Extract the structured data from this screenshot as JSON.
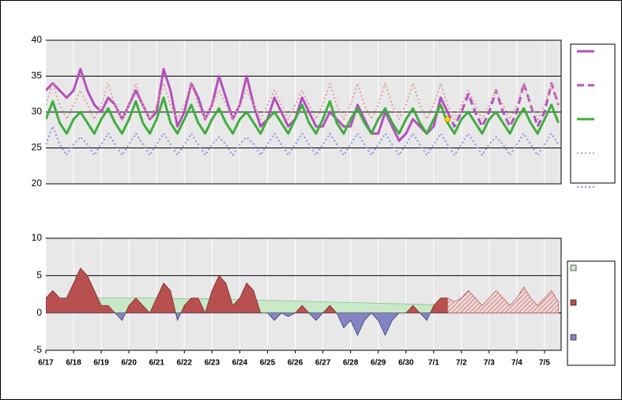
{
  "chart_data": [
    {
      "type": "line",
      "xlim": [
        0,
        18.6
      ],
      "ylim": [
        20,
        40
      ],
      "yticks": [
        20,
        25,
        30,
        35,
        40
      ],
      "grid": true,
      "series": [
        {
          "color": "#b54fbd",
          "style": "solid",
          "width": 3,
          "x": [
            0,
            0.25,
            0.5,
            0.75,
            1,
            1.25,
            1.5,
            1.75,
            2,
            2.25,
            2.5,
            2.75,
            3,
            3.25,
            3.5,
            3.75,
            4,
            4.25,
            4.5,
            4.75,
            5,
            5.25,
            5.5,
            5.75,
            6,
            6.25,
            6.5,
            6.75,
            7,
            7.25,
            7.5,
            7.75,
            8,
            8.25,
            8.5,
            8.75,
            9,
            9.25,
            9.5,
            9.75,
            10,
            10.25,
            10.5,
            10.75,
            11,
            11.25,
            11.5,
            11.75,
            12,
            12.25,
            12.5,
            12.75,
            13,
            13.25,
            13.5,
            13.75,
            14,
            14.25,
            14.5
          ],
          "values": [
            33,
            34,
            33,
            32,
            33,
            36,
            33,
            31,
            30,
            32,
            31,
            29,
            31,
            33,
            31,
            29,
            30,
            36,
            33,
            28,
            30,
            34,
            32,
            29,
            31,
            35,
            32,
            29,
            31,
            35,
            31,
            28,
            29,
            32,
            30,
            28,
            29,
            32,
            30,
            28,
            28,
            30,
            29,
            28,
            28,
            31,
            29,
            27,
            27,
            30,
            28,
            26,
            27,
            29,
            28,
            27,
            28,
            32,
            30
          ]
        },
        {
          "color": "#b54fbd",
          "style": "dashed",
          "width": 3,
          "x": [
            14.5,
            14.75,
            15,
            15.25,
            15.5,
            15.75,
            16,
            16.25,
            16.5,
            16.75,
            17,
            17.25,
            17.5,
            17.75,
            18,
            18.25,
            18.5
          ],
          "values": [
            30,
            28,
            30,
            32.5,
            30,
            28,
            30,
            33,
            30,
            28,
            30,
            34,
            31,
            28,
            30,
            34,
            31
          ]
        },
        {
          "color": "#3fae3f",
          "style": "solid",
          "width": 3,
          "x": [
            0,
            0.25,
            0.5,
            0.75,
            1,
            1.25,
            1.5,
            1.75,
            2,
            2.25,
            2.5,
            2.75,
            3,
            3.25,
            3.5,
            3.75,
            4,
            4.25,
            4.5,
            4.75,
            5,
            5.25,
            5.5,
            5.75,
            6,
            6.25,
            6.5,
            6.75,
            7,
            7.25,
            7.5,
            7.75,
            8,
            8.25,
            8.5,
            8.75,
            9,
            9.25,
            9.5,
            9.75,
            10,
            10.25,
            10.5,
            10.75,
            11,
            11.25,
            11.5,
            11.75,
            12,
            12.25,
            12.5,
            12.75,
            13,
            13.25,
            13.5,
            13.75,
            14,
            14.25,
            14.5,
            14.75,
            15,
            15.25,
            15.5,
            15.75,
            16,
            16.25,
            16.5,
            16.75,
            17,
            17.25,
            17.5,
            17.75,
            18,
            18.25,
            18.5
          ],
          "values": [
            29,
            31.5,
            28.5,
            27,
            29,
            30,
            28.5,
            27,
            29,
            30.5,
            28.5,
            27,
            29,
            31.5,
            28.5,
            27,
            29,
            32,
            28.5,
            27,
            29,
            31,
            28.5,
            27,
            29,
            30.5,
            28.5,
            27,
            29,
            30,
            28.5,
            27,
            29,
            30,
            28.5,
            27,
            29,
            31,
            28.5,
            27,
            29,
            31.5,
            28.5,
            27,
            29,
            30.5,
            28.5,
            27,
            29,
            30.5,
            28.5,
            27,
            29,
            30.5,
            28.5,
            27,
            29,
            31,
            28.5,
            27,
            29,
            30,
            28.5,
            27,
            29,
            30,
            28.5,
            27,
            29,
            30.5,
            28.5,
            27,
            29,
            31,
            28.5
          ]
        },
        {
          "color": "#e0a0a0",
          "style": "dotted",
          "width": 2,
          "x": [
            0,
            0.25,
            0.5,
            0.75,
            1,
            1.25,
            1.5,
            1.75,
            2,
            2.25,
            2.5,
            2.75,
            3,
            3.25,
            3.5,
            3.75,
            4,
            4.25,
            4.5,
            4.75,
            5,
            5.25,
            5.5,
            5.75,
            6,
            6.25,
            6.5,
            6.75,
            7,
            7.25,
            7.5,
            7.75,
            8,
            8.25,
            8.5,
            8.75,
            9,
            9.25,
            9.5,
            9.75,
            10,
            10.25,
            10.5,
            10.75,
            11,
            11.25,
            11.5,
            11.75,
            12,
            12.25,
            12.5,
            12.75,
            13,
            13.25,
            13.5,
            13.75,
            14,
            14.25,
            14.5,
            14.75,
            15,
            15.25,
            15.5,
            15.75,
            16,
            16.25,
            16.5,
            16.75,
            17,
            17.25,
            17.5,
            17.75,
            18,
            18.25,
            18.5
          ],
          "values": [
            31,
            34,
            31,
            29,
            31,
            33,
            31,
            29,
            31,
            34,
            31,
            29,
            31,
            34,
            31,
            29,
            31,
            34,
            31,
            29,
            31,
            34,
            31,
            29,
            31,
            33,
            31,
            29,
            31,
            33,
            31,
            29,
            31,
            33,
            31,
            29,
            31,
            33,
            31,
            29,
            31,
            34,
            31,
            29,
            31,
            34,
            31,
            29,
            31,
            34,
            31,
            29,
            31,
            34,
            31,
            29,
            31,
            34,
            31,
            29,
            31,
            33,
            31,
            29,
            31,
            33,
            31,
            29,
            31,
            34,
            31,
            29,
            31,
            34,
            31
          ]
        },
        {
          "color": "#9090e0",
          "style": "dotted",
          "width": 2,
          "x": [
            0,
            0.25,
            0.5,
            0.75,
            1,
            1.25,
            1.5,
            1.75,
            2,
            2.25,
            2.5,
            2.75,
            3,
            3.25,
            3.5,
            3.75,
            4,
            4.25,
            4.5,
            4.75,
            5,
            5.25,
            5.5,
            5.75,
            6,
            6.25,
            6.5,
            6.75,
            7,
            7.25,
            7.5,
            7.75,
            8,
            8.25,
            8.5,
            8.75,
            9,
            9.25,
            9.5,
            9.75,
            10,
            10.25,
            10.5,
            10.75,
            11,
            11.25,
            11.5,
            11.75,
            12,
            12.25,
            12.5,
            12.75,
            13,
            13.25,
            13.5,
            13.75,
            14,
            14.25,
            14.5,
            14.75,
            15,
            15.25,
            15.5,
            15.75,
            16,
            16.25,
            16.5,
            16.75,
            17,
            17.25,
            17.5,
            17.75,
            18,
            18.25,
            18.5
          ],
          "values": [
            25.5,
            28,
            25.5,
            24,
            25.5,
            26.5,
            25.5,
            24,
            25.5,
            27,
            25.5,
            24,
            25.5,
            27,
            25.5,
            24,
            25.5,
            27,
            25.5,
            24,
            25.5,
            27,
            25.5,
            24,
            25.5,
            26.5,
            25.5,
            24,
            25.5,
            26.5,
            25.5,
            24,
            25.5,
            27,
            25.5,
            24,
            25.5,
            27,
            25.5,
            24,
            25.5,
            27,
            25.5,
            24,
            25.5,
            27,
            25.5,
            24,
            25.5,
            27,
            25.5,
            24,
            25.5,
            27,
            25.5,
            24,
            25.5,
            27,
            25.5,
            24,
            25.5,
            27,
            25.5,
            24,
            25.5,
            26.5,
            25.5,
            24,
            25.5,
            27,
            25.5,
            24,
            25.5,
            27,
            25.5
          ]
        },
        {
          "color": "#ffd700",
          "style": "point",
          "x": [
            14.5
          ],
          "values": [
            29
          ]
        }
      ]
    },
    {
      "type": "area",
      "xlim": [
        0,
        18.6
      ],
      "ylim": [
        -5,
        10
      ],
      "yticks": [
        -5,
        0,
        5,
        10
      ],
      "grid": true,
      "xticks": [
        {
          "value": 0,
          "label": "6/17"
        },
        {
          "value": 1,
          "label": "6/18"
        },
        {
          "value": 2,
          "label": "6/19"
        },
        {
          "value": 3,
          "label": "6/20"
        },
        {
          "value": 4,
          "label": "6/21"
        },
        {
          "value": 5,
          "label": "6/22"
        },
        {
          "value": 6,
          "label": "6/23"
        },
        {
          "value": 7,
          "label": "6/24"
        },
        {
          "value": 8,
          "label": "6/25"
        },
        {
          "value": 9,
          "label": "6/26"
        },
        {
          "value": 10,
          "label": "6/27"
        },
        {
          "value": 11,
          "label": "6/28"
        },
        {
          "value": 12,
          "label": "6/29"
        },
        {
          "value": 13,
          "label": "6/30"
        },
        {
          "value": 14,
          "label": "7/1"
        },
        {
          "value": 15,
          "label": "7/2"
        },
        {
          "value": 16,
          "label": "7/3"
        },
        {
          "value": 17,
          "label": "7/4"
        },
        {
          "value": 18,
          "label": "7/5"
        }
      ],
      "series": [
        {
          "color": "#c8e8c8",
          "style": "fill",
          "x": [
            0,
            1,
            2,
            3,
            4,
            5,
            6,
            7,
            8,
            9,
            10,
            11,
            12,
            13,
            14
          ],
          "values": [
            1.8,
            1.9,
            2.0,
            2.0,
            2.0,
            1.9,
            1.9,
            1.8,
            1.7,
            1.6,
            1.5,
            1.4,
            1.3,
            1.2,
            1.1
          ]
        },
        {
          "color": "#b85050",
          "negative_color": "#8484c4",
          "style": "split",
          "x": [
            0,
            0.25,
            0.5,
            0.75,
            1,
            1.25,
            1.5,
            1.75,
            2,
            2.25,
            2.5,
            2.75,
            3,
            3.25,
            3.5,
            3.75,
            4,
            4.25,
            4.5,
            4.75,
            5,
            5.25,
            5.5,
            5.75,
            6,
            6.25,
            6.5,
            6.75,
            7,
            7.25,
            7.5,
            7.75,
            8,
            8.25,
            8.5,
            8.75,
            9,
            9.25,
            9.5,
            9.75,
            10,
            10.25,
            10.5,
            10.75,
            11,
            11.25,
            11.5,
            11.75,
            12,
            12.25,
            12.5,
            12.75,
            13,
            13.25,
            13.5,
            13.75,
            14,
            14.25,
            14.5
          ],
          "values": [
            2,
            3,
            2,
            2,
            4,
            6,
            5,
            3,
            1,
            1,
            0,
            -1,
            1,
            2,
            1,
            0,
            2,
            4,
            3,
            -1,
            1,
            2,
            2,
            0,
            3,
            5,
            4,
            1,
            2,
            4,
            3,
            0,
            0,
            -1,
            0,
            -0.5,
            0,
            1,
            0,
            -1,
            0,
            1,
            0,
            -2,
            -1,
            -3,
            -1,
            0,
            -1,
            -3,
            -1,
            0,
            0,
            1,
            0,
            -1,
            1,
            2,
            2
          ]
        },
        {
          "color": "#b85050",
          "style": "hatched",
          "x": [
            14.5,
            14.75,
            15,
            15.25,
            15.5,
            15.75,
            16,
            16.25,
            16.5,
            16.75,
            17,
            17.25,
            17.5,
            17.75,
            18,
            18.25,
            18.5
          ],
          "values": [
            2,
            1.5,
            2,
            3,
            2,
            1,
            2,
            3,
            2,
            1,
            2,
            3.5,
            2,
            1,
            2,
            3,
            1.5
          ]
        }
      ]
    }
  ]
}
